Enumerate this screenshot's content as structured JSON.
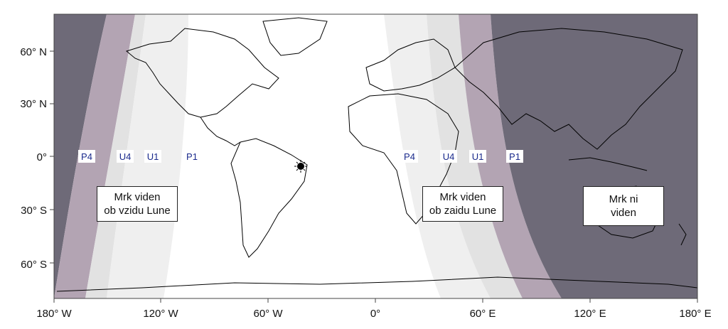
{
  "map": {
    "colors": {
      "no_eclipse": "#6e6a78",
      "penumbral_partial": "#b3a4b3",
      "umbral_band": "#e2e2e2",
      "partial_band": "#efefef",
      "visible": "#ffffff",
      "land_outline": "#000000"
    },
    "x_ticks": [
      "180° W",
      "120° W",
      "60° W",
      "0°",
      "60° E",
      "120° E",
      "180° E"
    ],
    "y_ticks": [
      "60° N",
      "30° N",
      "0°",
      "30° S",
      "60° S"
    ],
    "contact_labels_west": [
      "P4",
      "U4",
      "U1",
      "P1"
    ],
    "contact_labels_east": [
      "P4",
      "U4",
      "U1",
      "P1"
    ],
    "regions": {
      "rise": {
        "line1": "Mrk viden",
        "line2": "ob vzidu Lune"
      },
      "set": {
        "line1": "Mrk viden",
        "line2": "ob zaidu Lune"
      },
      "none": {
        "line1": "Mrk ni",
        "line2": "viden"
      }
    },
    "subsolar_marker": "sun-point-icon"
  }
}
